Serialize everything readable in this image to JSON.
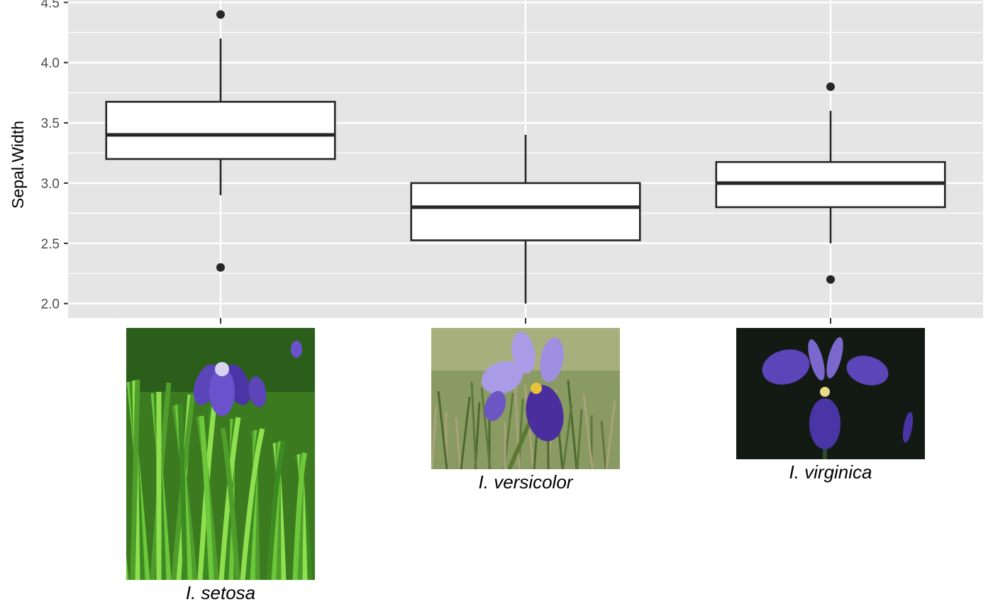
{
  "chart_data": {
    "type": "boxplot",
    "ylabel": "Sepal.Width",
    "ylim": [
      1.88,
      4.52
    ],
    "yticks": [
      {
        "value": 2.0,
        "label": "2.0"
      },
      {
        "value": 2.5,
        "label": "2.5"
      },
      {
        "value": 3.0,
        "label": "3.0"
      },
      {
        "value": 3.5,
        "label": "3.5"
      },
      {
        "value": 4.0,
        "label": "4.0"
      },
      {
        "value": 4.5,
        "label": "4.5"
      }
    ],
    "grid": true,
    "categories": [
      {
        "key": "setosa",
        "label": "I. setosa",
        "q1": 3.2,
        "median": 3.4,
        "q3": 3.675,
        "whisker_low": 2.9,
        "whisker_high": 4.2,
        "outliers": [
          4.4,
          2.3
        ],
        "photo": "iris-setosa-photo"
      },
      {
        "key": "versicolor",
        "label": "I. versicolor",
        "q1": 2.525,
        "median": 2.8,
        "q3": 3.0,
        "whisker_low": 2.0,
        "whisker_high": 3.4,
        "outliers": [],
        "photo": "iris-versicolor-photo"
      },
      {
        "key": "virginica",
        "label": "I. virginica",
        "q1": 2.8,
        "median": 3.0,
        "q3": 3.175,
        "whisker_low": 2.5,
        "whisker_high": 3.6,
        "outliers": [
          3.8,
          2.2
        ],
        "photo": "iris-virginica-photo"
      }
    ],
    "colors": {
      "panel": "#e5e5e5",
      "grid": "#ffffff",
      "box_fill": "#ffffff",
      "box_stroke": "#262626",
      "foliage": "#4f9e2c",
      "petal": "#5b45b8",
      "dark_bg": "#131a14"
    }
  }
}
